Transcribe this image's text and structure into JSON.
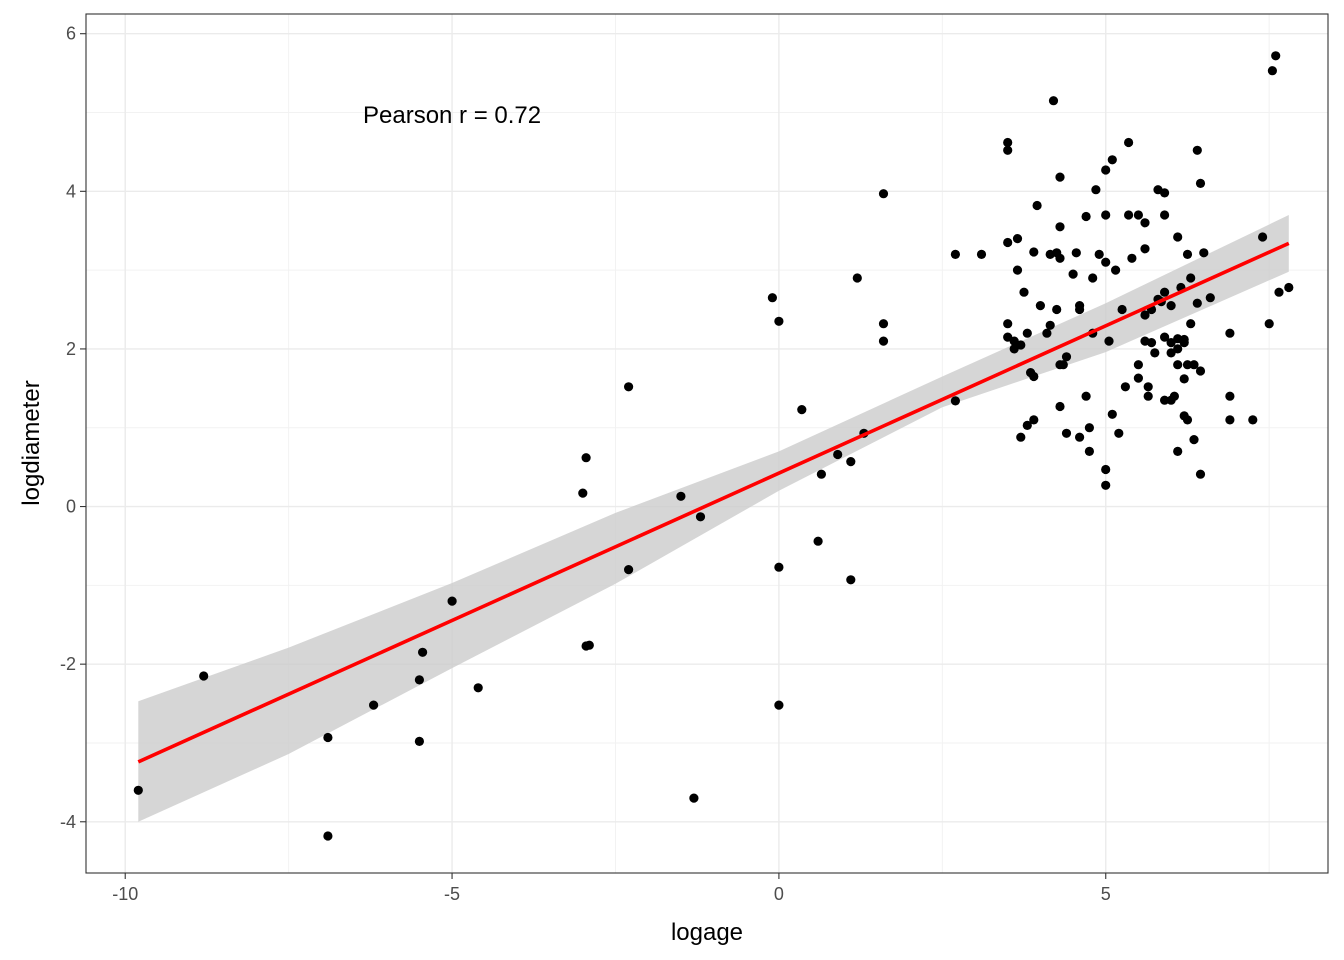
{
  "chart_data": {
    "type": "scatter",
    "title": "",
    "xlabel": "logage",
    "ylabel": "logdiameter",
    "xlim": [
      -10.6,
      8.4
    ],
    "ylim": [
      -4.65,
      6.25
    ],
    "x_ticks": [
      -10,
      -5,
      0,
      5
    ],
    "y_ticks": [
      -4,
      -2,
      0,
      2,
      4,
      6
    ],
    "x_tick_labels": [
      "-10",
      "-5",
      "0",
      "5"
    ],
    "y_tick_labels": [
      "-4",
      "-2",
      "0",
      "2",
      "4",
      "6"
    ],
    "grid": true,
    "annotation": {
      "text": "Pearson r = 0.72",
      "x": -5,
      "y": 4.97
    },
    "fit_line": {
      "color": "#ff0000",
      "x": [
        -9.8,
        7.8
      ],
      "y": [
        -3.24,
        3.34
      ]
    },
    "confidence_band": {
      "color": "#cccccc",
      "x": [
        -9.8,
        -7.5,
        -5,
        -2.5,
        0,
        2.5,
        5,
        7.8
      ],
      "lower": [
        -4.0,
        -3.14,
        -2.05,
        -0.98,
        0.2,
        1.26,
        1.96,
        2.98
      ],
      "upper": [
        -2.47,
        -1.79,
        -0.97,
        -0.08,
        0.7,
        1.65,
        2.58,
        3.7
      ]
    },
    "point_color": "#000000",
    "series": [
      {
        "points": [
          [
            -9.8,
            -3.6
          ],
          [
            -8.8,
            -2.15
          ],
          [
            -6.9,
            -2.93
          ],
          [
            -6.9,
            -4.18
          ],
          [
            -6.2,
            -2.52
          ],
          [
            -5.5,
            -2.2
          ],
          [
            -5.5,
            -2.98
          ],
          [
            -5.45,
            -1.85
          ],
          [
            -5.0,
            -1.2
          ],
          [
            -4.6,
            -2.3
          ],
          [
            -3.0,
            0.17
          ],
          [
            -2.95,
            0.62
          ],
          [
            -2.95,
            -1.77
          ],
          [
            -2.9,
            -1.76
          ],
          [
            -2.3,
            1.52
          ],
          [
            -2.3,
            -0.8
          ],
          [
            -1.5,
            0.13
          ],
          [
            -1.3,
            -3.7
          ],
          [
            -1.2,
            -0.13
          ],
          [
            -0.1,
            2.65
          ],
          [
            0.0,
            2.35
          ],
          [
            0.0,
            -0.77
          ],
          [
            0.0,
            -2.52
          ],
          [
            0.35,
            1.23
          ],
          [
            0.6,
            -0.44
          ],
          [
            0.65,
            0.41
          ],
          [
            0.9,
            0.66
          ],
          [
            1.1,
            0.57
          ],
          [
            1.1,
            -0.93
          ],
          [
            1.2,
            2.9
          ],
          [
            1.3,
            0.93
          ],
          [
            1.6,
            3.97
          ],
          [
            1.6,
            2.32
          ],
          [
            1.6,
            2.1
          ],
          [
            2.7,
            3.2
          ],
          [
            2.7,
            1.34
          ],
          [
            3.1,
            3.2
          ],
          [
            3.5,
            4.62
          ],
          [
            3.5,
            4.52
          ],
          [
            3.5,
            3.35
          ],
          [
            3.5,
            2.32
          ],
          [
            3.5,
            2.15
          ],
          [
            3.6,
            2.0
          ],
          [
            3.6,
            2.1
          ],
          [
            3.65,
            3.4
          ],
          [
            3.65,
            3.0
          ],
          [
            3.7,
            2.05
          ],
          [
            3.7,
            0.88
          ],
          [
            3.75,
            2.72
          ],
          [
            3.8,
            2.2
          ],
          [
            3.85,
            1.7
          ],
          [
            3.9,
            1.1
          ],
          [
            3.9,
            1.65
          ],
          [
            3.9,
            3.23
          ],
          [
            3.95,
            3.82
          ],
          [
            3.8,
            1.03
          ],
          [
            4.0,
            2.55
          ],
          [
            4.1,
            2.2
          ],
          [
            4.15,
            3.2
          ],
          [
            4.15,
            2.3
          ],
          [
            4.2,
            5.15
          ],
          [
            4.3,
            4.18
          ],
          [
            4.25,
            3.22
          ],
          [
            4.25,
            2.5
          ],
          [
            4.3,
            3.55
          ],
          [
            4.3,
            3.15
          ],
          [
            4.3,
            1.8
          ],
          [
            4.3,
            1.27
          ],
          [
            4.35,
            1.8
          ],
          [
            4.4,
            1.9
          ],
          [
            4.4,
            0.93
          ],
          [
            4.5,
            2.95
          ],
          [
            4.55,
            3.22
          ],
          [
            4.6,
            2.5
          ],
          [
            4.6,
            2.55
          ],
          [
            4.6,
            0.88
          ],
          [
            4.7,
            1.4
          ],
          [
            4.7,
            3.68
          ],
          [
            4.75,
            1.0
          ],
          [
            4.75,
            0.7
          ],
          [
            4.8,
            2.9
          ],
          [
            4.8,
            2.2
          ],
          [
            4.85,
            4.02
          ],
          [
            4.9,
            3.2
          ],
          [
            5.0,
            3.7
          ],
          [
            5.0,
            4.27
          ],
          [
            5.0,
            3.1
          ],
          [
            5.0,
            0.47
          ],
          [
            5.0,
            0.27
          ],
          [
            5.05,
            2.1
          ],
          [
            5.1,
            4.4
          ],
          [
            5.1,
            1.17
          ],
          [
            5.15,
            3.0
          ],
          [
            5.2,
            0.93
          ],
          [
            5.25,
            2.5
          ],
          [
            5.3,
            1.52
          ],
          [
            5.35,
            4.62
          ],
          [
            5.35,
            3.7
          ],
          [
            5.4,
            3.15
          ],
          [
            5.5,
            3.7
          ],
          [
            5.5,
            1.8
          ],
          [
            5.5,
            1.63
          ],
          [
            5.6,
            3.6
          ],
          [
            5.6,
            3.27
          ],
          [
            5.6,
            2.43
          ],
          [
            5.6,
            2.1
          ],
          [
            5.65,
            1.52
          ],
          [
            5.65,
            1.4
          ],
          [
            5.7,
            2.5
          ],
          [
            5.7,
            2.08
          ],
          [
            5.75,
            1.95
          ],
          [
            5.8,
            2.63
          ],
          [
            5.8,
            4.02
          ],
          [
            5.85,
            2.6
          ],
          [
            5.9,
            3.98
          ],
          [
            5.9,
            3.7
          ],
          [
            5.9,
            2.72
          ],
          [
            5.9,
            2.15
          ],
          [
            5.9,
            1.35
          ],
          [
            6.0,
            2.55
          ],
          [
            6.0,
            2.08
          ],
          [
            6.0,
            1.95
          ],
          [
            6.0,
            1.35
          ],
          [
            6.05,
            1.4
          ],
          [
            6.1,
            3.42
          ],
          [
            6.1,
            2.13
          ],
          [
            6.1,
            2.0
          ],
          [
            6.1,
            1.8
          ],
          [
            6.1,
            0.7
          ],
          [
            6.15,
            2.78
          ],
          [
            6.2,
            2.12
          ],
          [
            6.2,
            2.08
          ],
          [
            6.2,
            1.15
          ],
          [
            6.2,
            1.62
          ],
          [
            6.25,
            3.2
          ],
          [
            6.25,
            1.8
          ],
          [
            6.25,
            1.1
          ],
          [
            6.3,
            2.9
          ],
          [
            6.3,
            2.32
          ],
          [
            6.35,
            1.8
          ],
          [
            6.35,
            0.85
          ],
          [
            6.4,
            4.52
          ],
          [
            6.4,
            2.58
          ],
          [
            6.45,
            4.1
          ],
          [
            6.45,
            1.72
          ],
          [
            6.45,
            0.41
          ],
          [
            6.5,
            3.22
          ],
          [
            6.6,
            2.65
          ],
          [
            6.9,
            2.2
          ],
          [
            6.9,
            1.4
          ],
          [
            6.9,
            1.1
          ],
          [
            7.25,
            1.1
          ],
          [
            7.4,
            3.42
          ],
          [
            7.5,
            2.32
          ],
          [
            7.55,
            5.53
          ],
          [
            7.6,
            5.72
          ],
          [
            7.8,
            2.78
          ],
          [
            7.65,
            2.72
          ]
        ]
      }
    ]
  }
}
